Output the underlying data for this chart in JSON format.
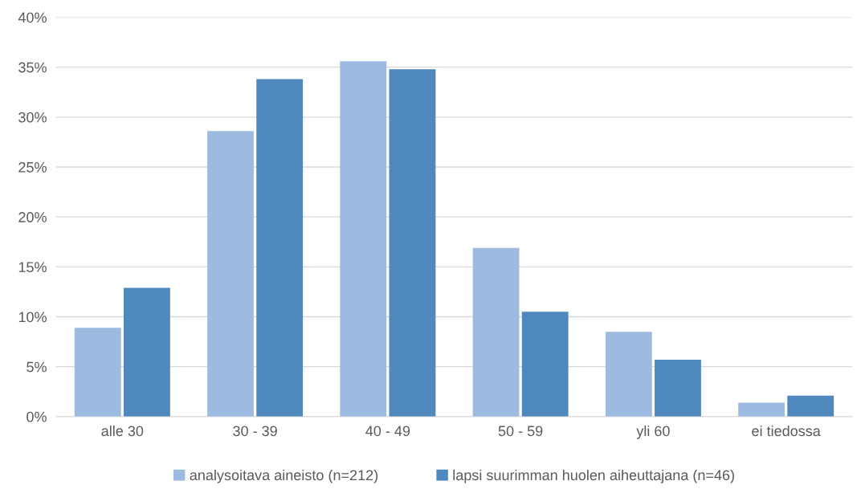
{
  "chart_data": {
    "type": "bar",
    "categories": [
      "alle 30",
      "30 - 39",
      "40 - 49",
      "50 - 59",
      "yli 60",
      "ei tiedossa"
    ],
    "series": [
      {
        "name": "analysoitava aineisto (n=212)",
        "color": "#9dbbe0",
        "values": [
          8.9,
          28.6,
          35.6,
          16.9,
          8.5,
          1.4
        ]
      },
      {
        "name": "lapsi suurimman huolen aiheuttajana (n=46)",
        "color": "#4f88bd",
        "values": [
          12.9,
          33.8,
          34.8,
          10.5,
          5.7,
          2.1
        ]
      }
    ],
    "ylim": [
      0,
      40
    ],
    "yticks": [
      {
        "value": 0,
        "label": "0%"
      },
      {
        "value": 5,
        "label": "5%"
      },
      {
        "value": 10,
        "label": "10%"
      },
      {
        "value": 15,
        "label": "15%"
      },
      {
        "value": 20,
        "label": "20%"
      },
      {
        "value": 25,
        "label": "25%"
      },
      {
        "value": 30,
        "label": "30%"
      },
      {
        "value": 35,
        "label": "35%"
      },
      {
        "value": 40,
        "label": "40%"
      }
    ],
    "grid": "y",
    "legend": "bottom"
  }
}
